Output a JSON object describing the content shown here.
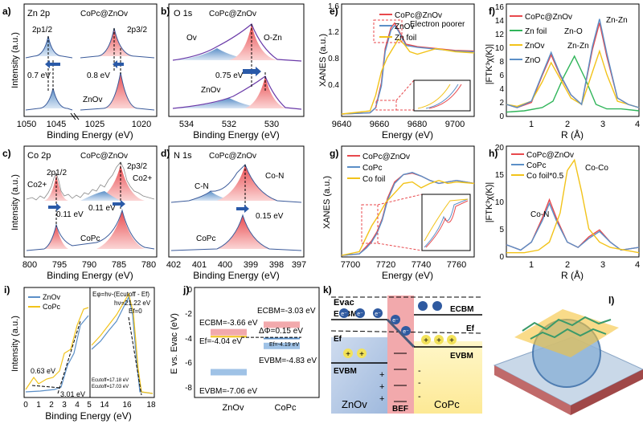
{
  "figure": {
    "letters": [
      "a)",
      "b)",
      "c)",
      "d)",
      "e)",
      "f)",
      "g)",
      "h)",
      "i)",
      "j)",
      "k)",
      "l)"
    ],
    "common": {
      "intensity": "Intensity (a.u.)",
      "binding_energy": "Binding Energy (eV)",
      "xanes": "XANES (a.u.)",
      "energy": "Energy (eV)",
      "ftk": "|FTK³χ(K)|",
      "r": "R (Å)"
    }
  },
  "chart_data": [
    {
      "panel": "a",
      "type": "line",
      "title_left": "Zn 2p",
      "title_mid": "CoPc@ZnOv",
      "labels": [
        "2p1/2",
        "2p3/2",
        "0.7 eV",
        "0.8 eV",
        "ZnOv"
      ],
      "xlabel": "Binding Energy (eV)",
      "ylabel": "Intensity (a.u.)",
      "xticks": [
        "1050",
        "1045",
        "1025",
        "1020"
      ],
      "broken_axis": true,
      "peaks": [
        {
          "series": "CoPc@ZnOv",
          "center": 1045.3,
          "component": "2p1/2"
        },
        {
          "series": "CoPc@ZnOv",
          "center": 1021.8,
          "component": "2p3/2"
        },
        {
          "series": "ZnOv",
          "center": 1044.6,
          "component": "2p1/2"
        },
        {
          "series": "ZnOv",
          "center": 1021.0,
          "component": "2p3/2"
        }
      ]
    },
    {
      "panel": "b",
      "type": "line",
      "title_left": "O 1s",
      "title_mid": "CoPc@ZnOv",
      "labels": [
        "Ov",
        "O-Zn",
        "0.75 eV",
        "ZnOv"
      ],
      "xlabel": "Binding Energy (eV)",
      "ylabel": "",
      "xticks": [
        "534",
        "532",
        "530"
      ],
      "xlim": [
        535,
        529
      ],
      "peaks": [
        {
          "series": "CoPc@ZnOv",
          "component": "Ov",
          "center": 532.2
        },
        {
          "series": "CoPc@ZnOv",
          "component": "O-Zn",
          "center": 530.8
        },
        {
          "series": "ZnOv",
          "component": "Ov",
          "center": 531.6
        },
        {
          "series": "ZnOv",
          "component": "O-Zn",
          "center": 530.0
        }
      ]
    },
    {
      "panel": "c",
      "type": "line",
      "title_left": "Co 2p",
      "title_mid": "CoPc@ZnOv",
      "labels": [
        "2p1/2",
        "2p3/2",
        "Co2+",
        "Co2+",
        "0.11 eV",
        "0.11 eV",
        "CoPc"
      ],
      "xlabel": "Binding Energy (eV)",
      "ylabel": "Intensity (a.u.)",
      "xticks": [
        "800",
        "795",
        "790",
        "785",
        "780"
      ],
      "xlim": [
        800,
        778
      ],
      "peaks": [
        {
          "series": "CoPc@ZnOv",
          "center": 796.2
        },
        {
          "series": "CoPc@ZnOv",
          "center": 780.9
        },
        {
          "series": "CoPc",
          "center": 796.1
        },
        {
          "series": "CoPc",
          "center": 780.8
        }
      ]
    },
    {
      "panel": "d",
      "type": "line",
      "title_left": "N 1s",
      "title_mid": "CoPc@ZnOv",
      "labels": [
        "C-N",
        "Co-N",
        "0.15 eV",
        "CoPc"
      ],
      "xlabel": "Binding Energy (eV)",
      "ylabel": "",
      "xticks": [
        "402",
        "401",
        "400",
        "399",
        "398",
        "397"
      ],
      "xlim": [
        402,
        397
      ],
      "peaks": [
        {
          "series": "CoPc@ZnOv",
          "component": "C-N",
          "center": 400.4
        },
        {
          "series": "CoPc@ZnOv",
          "component": "Co-N",
          "center": 399.2
        },
        {
          "series": "CoPc",
          "component": "Co-N",
          "center": 399.3
        }
      ]
    },
    {
      "panel": "e",
      "type": "line",
      "legend": [
        "CoPc@ZnOv",
        "ZnOv",
        "Zn foil"
      ],
      "annotation": "Electron poorer",
      "xlabel": "Energy (eV)",
      "ylabel": "XANES (a.u.)",
      "xticks": [
        "9640",
        "9660",
        "9680",
        "9700"
      ],
      "xlim": [
        9640,
        9710
      ],
      "yticks": [
        "0.0",
        "0.4",
        "0.8",
        "1.2",
        "1.6"
      ],
      "ylim": [
        0,
        1.7
      ],
      "series": [
        {
          "name": "CoPc@ZnOv",
          "color": "#e8494d",
          "x": [
            9640,
            9655,
            9658,
            9661,
            9663,
            9666,
            9668,
            9670,
            9674,
            9680,
            9690,
            9700,
            9710
          ],
          "y": [
            0.0,
            0.02,
            0.1,
            0.5,
            1.05,
            1.38,
            1.46,
            1.35,
            1.12,
            1.08,
            1.05,
            1.02,
            1.01
          ]
        },
        {
          "name": "ZnOv",
          "color": "#5b8fc7",
          "x": [
            9640,
            9655,
            9658,
            9661,
            9663,
            9666,
            9668,
            9670,
            9674,
            9680,
            9690,
            9700,
            9710
          ],
          "y": [
            0.0,
            0.02,
            0.1,
            0.45,
            1.0,
            1.34,
            1.42,
            1.33,
            1.1,
            1.07,
            1.04,
            1.01,
            1.0
          ]
        },
        {
          "name": "Zn foil",
          "color": "#f2c31a",
          "x": [
            9640,
            9655,
            9658,
            9661,
            9664,
            9667,
            9670,
            9673,
            9676,
            9680,
            9690,
            9700,
            9710
          ],
          "y": [
            0.0,
            0.05,
            0.3,
            0.68,
            0.9,
            1.05,
            1.2,
            1.12,
            1.0,
            0.96,
            1.05,
            1.0,
            0.98
          ]
        }
      ]
    },
    {
      "panel": "f",
      "type": "line",
      "legend": [
        "CoPc@ZnOv",
        "Zn foil",
        "ZnOv",
        "ZnO"
      ],
      "labels": [
        "Zn-O",
        "Zn-Zn",
        "Zn-Zn"
      ],
      "xlabel": "R (Å)",
      "ylabel": "|FTK³χ(K)|",
      "xticks": [
        "1",
        "2",
        "3",
        "4"
      ],
      "xlim": [
        0.3,
        4
      ],
      "yticks": [
        "0",
        "2",
        "4",
        "6",
        "8",
        "10",
        "12",
        "14",
        "16"
      ],
      "ylim": [
        0,
        16.5
      ],
      "series": [
        {
          "name": "CoPc@ZnOv",
          "color": "#e8494d",
          "x": [
            0.3,
            0.6,
            1.0,
            1.3,
            1.55,
            1.8,
            2.1,
            2.4,
            2.7,
            2.9,
            3.1,
            3.4,
            3.7,
            4.0
          ],
          "y": [
            1.5,
            1.0,
            1.8,
            6.0,
            9.2,
            6.0,
            3.0,
            1.5,
            10.0,
            14.2,
            9.0,
            2.5,
            1.5,
            1.0
          ]
        },
        {
          "name": "Zn foil",
          "color": "#30b55a",
          "x": [
            0.3,
            0.8,
            1.3,
            1.6,
            1.9,
            2.2,
            2.5,
            2.8,
            3.1,
            3.5,
            4.0
          ],
          "y": [
            0.3,
            0.5,
            1.0,
            2.0,
            5.8,
            9.0,
            5.5,
            1.5,
            0.8,
            0.8,
            0.5
          ]
        },
        {
          "name": "ZnOv",
          "color": "#f2c31a",
          "x": [
            0.3,
            0.6,
            1.0,
            1.3,
            1.55,
            1.8,
            2.1,
            2.4,
            2.7,
            2.9,
            3.1,
            3.4,
            3.7,
            4.0
          ],
          "y": [
            1.5,
            1.2,
            2.0,
            5.0,
            8.0,
            5.5,
            2.5,
            1.5,
            6.5,
            9.8,
            6.2,
            2.0,
            1.5,
            1.0
          ]
        },
        {
          "name": "ZnO",
          "color": "#5b8fc7",
          "x": [
            0.3,
            0.6,
            1.0,
            1.3,
            1.55,
            1.8,
            2.1,
            2.4,
            2.7,
            2.9,
            3.1,
            3.4,
            3.7,
            4.0
          ],
          "y": [
            1.5,
            1.0,
            2.0,
            6.2,
            9.6,
            6.2,
            3.0,
            1.5,
            10.5,
            14.8,
            9.5,
            2.5,
            1.5,
            1.0
          ]
        }
      ]
    },
    {
      "panel": "g",
      "type": "line",
      "legend": [
        "CoPc@ZnOv",
        "CoPc",
        "Co foil"
      ],
      "xlabel": "Energy (eV)",
      "ylabel": "XANES (a.u.)",
      "xticks": [
        "7700",
        "7720",
        "7740",
        "7760"
      ],
      "xlim": [
        7695,
        7770
      ],
      "series": [
        {
          "name": "CoPc@ZnOv",
          "color": "#e8494d",
          "x": [
            7695,
            7705,
            7709,
            7712,
            7715,
            7718,
            7721,
            7725,
            7730,
            7735,
            7740,
            7745,
            7750,
            7755,
            7760,
            7765,
            7770
          ],
          "y": [
            0.0,
            0.02,
            0.12,
            0.2,
            0.32,
            0.5,
            0.78,
            1.0,
            1.1,
            1.12,
            1.08,
            1.02,
            0.98,
            1.0,
            1.02,
            1.0,
            0.98
          ]
        },
        {
          "name": "CoPc",
          "color": "#5b8fc7",
          "x": [
            7695,
            7705,
            7709,
            7712,
            7715,
            7718,
            7721,
            7725,
            7730,
            7735,
            7740,
            7745,
            7750,
            7755,
            7760,
            7765,
            7770
          ],
          "y": [
            0.0,
            0.02,
            0.1,
            0.18,
            0.3,
            0.48,
            0.75,
            0.98,
            1.1,
            1.13,
            1.08,
            1.02,
            0.98,
            1.0,
            1.02,
            1.0,
            0.98
          ]
        },
        {
          "name": "Co foil",
          "color": "#f2c31a",
          "x": [
            7695,
            7705,
            7709,
            7712,
            7716,
            7720,
            7725,
            7730,
            7735,
            7740,
            7745,
            7750,
            7755,
            7760,
            7765,
            7770
          ],
          "y": [
            0.0,
            0.05,
            0.25,
            0.4,
            0.55,
            0.72,
            0.85,
            0.98,
            1.0,
            0.92,
            0.98,
            1.02,
            0.98,
            1.0,
            0.99,
            0.98
          ]
        }
      ]
    },
    {
      "panel": "h",
      "type": "line",
      "legend": [
        "CoPc@ZnOv",
        "CoPc",
        "Co foil*0.5"
      ],
      "labels": [
        "Co-N",
        "Co-Co"
      ],
      "xlabel": "R (Å)",
      "ylabel": "|FTK³χ(K)|",
      "xticks": [
        "1",
        "2",
        "3",
        "4"
      ],
      "xlim": [
        0.3,
        4
      ],
      "yticks": [
        "0",
        "5",
        "10",
        "15",
        "20"
      ],
      "ylim": [
        0,
        20
      ],
      "series": [
        {
          "name": "CoPc@ZnOv",
          "color": "#e8494d",
          "x": [
            0.3,
            0.7,
            1.0,
            1.3,
            1.5,
            1.7,
            2.0,
            2.3,
            2.6,
            2.9,
            3.2,
            3.5,
            4.0
          ],
          "y": [
            2.0,
            1.0,
            2.5,
            7.0,
            10.5,
            7.0,
            2.5,
            1.5,
            3.5,
            4.8,
            2.5,
            1.0,
            1.5
          ]
        },
        {
          "name": "CoPc",
          "color": "#5b8fc7",
          "x": [
            0.3,
            0.7,
            1.0,
            1.3,
            1.5,
            1.7,
            2.0,
            2.3,
            2.6,
            2.9,
            3.2,
            3.5,
            4.0
          ],
          "y": [
            2.0,
            1.0,
            2.5,
            6.5,
            9.8,
            6.5,
            2.5,
            1.5,
            3.2,
            4.5,
            2.5,
            1.0,
            1.5
          ]
        },
        {
          "name": "Co foil*0.5",
          "color": "#f2c31a",
          "x": [
            0.3,
            0.8,
            1.2,
            1.5,
            1.8,
            2.0,
            2.2,
            2.4,
            2.6,
            2.9,
            3.2,
            3.6,
            4.0
          ],
          "y": [
            0.5,
            0.5,
            1.0,
            2.5,
            8.0,
            16.0,
            18.0,
            12.0,
            5.0,
            2.5,
            1.5,
            1.0,
            0.5
          ]
        }
      ]
    },
    {
      "panel": "i",
      "type": "line",
      "legend": [
        "ZnOv",
        "CoPc"
      ],
      "labels": [
        "0.63 eV",
        "3.01 eV"
      ],
      "equation": "Eφ=hν-(Ecutoff - Ef)",
      "hv": "hν=21.22 eV",
      "ef": "Ef=0",
      "cutoffs": [
        "Ecutoff=17.18 eV",
        "Ecutoff=17.03 eV"
      ],
      "xlabel": "Binding Energy (eV)",
      "ylabel": "Intensity (a.u.)",
      "xticks": [
        "0",
        "1",
        "2",
        "3",
        "4",
        "5",
        "14",
        "16",
        "18"
      ],
      "series": [
        {
          "name": "ZnOv",
          "color": "#5b8fc7",
          "x": [
            0,
            1,
            2,
            2.5,
            3.0,
            3.5,
            4.0,
            4.5,
            5.0
          ],
          "y": [
            0.05,
            0.06,
            0.08,
            0.1,
            0.25,
            0.55,
            0.65,
            0.85,
            0.95
          ]
        },
        {
          "name": "CoPc",
          "color": "#f2c31a",
          "x": [
            0,
            0.63,
            1.0,
            1.5,
            2.0,
            2.5,
            3.0,
            3.5,
            4.0,
            4.5,
            5.0
          ],
          "y": [
            0.05,
            0.15,
            0.12,
            0.2,
            0.22,
            0.3,
            0.55,
            0.65,
            0.85,
            1.0,
            1.0
          ]
        }
      ]
    },
    {
      "panel": "j",
      "type": "bar",
      "ylabel": "E vs. Evac (eV)",
      "categories": [
        "ZnOv",
        "CoPc"
      ],
      "yticks": [
        "0",
        "-2",
        "-4",
        "-6",
        "-8"
      ],
      "ylim": [
        -9,
        0
      ],
      "levels": {
        "ZnOv": {
          "cbm": -3.66,
          "ef": -4.04,
          "vbm": -7.06
        },
        "CoPc": {
          "cbm": -3.03,
          "ef": -4.19,
          "vbm": -4.83
        }
      },
      "labels": [
        "ECBM=-3.03 eV",
        "ECBM=-3.66 eV",
        "ΔΦ=0.15 eV",
        "Ef=-4.04 eV",
        "Ef=-4.19 eV",
        "EVBM=-4.83 eV",
        "EVBM=-7.06 eV"
      ]
    }
  ],
  "diagram_k": {
    "evac": "Evac",
    "ecbm": "ECBM",
    "ef": "Ef",
    "evbm": "EVBM",
    "electron": "e⁻",
    "hole": "+",
    "minus": "-",
    "left": "ZnOv",
    "bef": "BEF",
    "right": "CoPc"
  },
  "illustration_l": {
    "label": "l)"
  }
}
